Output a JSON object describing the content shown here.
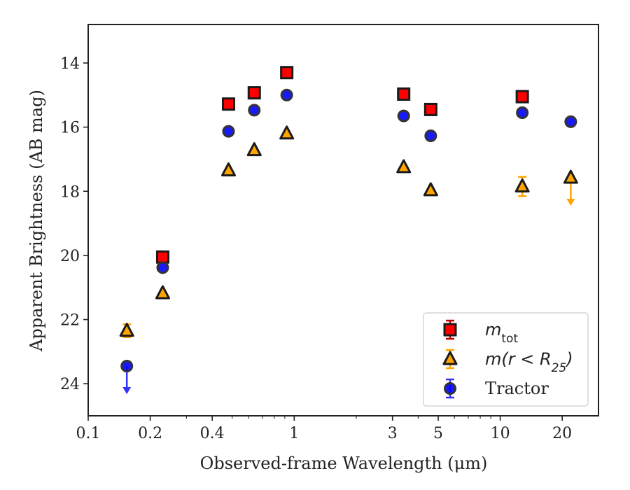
{
  "chart_data": {
    "type": "scatter",
    "xlabel": "Observed-frame Wavelength (μm)",
    "ylabel": "Apparent Brightness (AB mag)",
    "x_scale": "log",
    "xlim": [
      0.1,
      30
    ],
    "ylim": [
      25.0,
      12.8
    ],
    "y_inverted": true,
    "x_ticks": [
      {
        "value": 0.1,
        "label": "0.1"
      },
      {
        "value": 0.2,
        "label": "0.2"
      },
      {
        "value": 0.4,
        "label": "0.4"
      },
      {
        "value": 1,
        "label": "1"
      },
      {
        "value": 3,
        "label": "3"
      },
      {
        "value": 5,
        "label": "5"
      },
      {
        "value": 10,
        "label": "10"
      },
      {
        "value": 20,
        "label": "20"
      }
    ],
    "y_ticks": [
      {
        "value": 14,
        "label": "14"
      },
      {
        "value": 16,
        "label": "16"
      },
      {
        "value": 18,
        "label": "18"
      },
      {
        "value": 20,
        "label": "20"
      },
      {
        "value": 22,
        "label": "22"
      },
      {
        "value": 24,
        "label": "24"
      }
    ],
    "grid": false,
    "legend_position": "lower-right",
    "series": [
      {
        "name": "m_tot",
        "legend_main": "m",
        "legend_sub": "tot",
        "marker": "square",
        "color": "#ff0000",
        "edge_color": "#1a1a1a",
        "error_color": "#c00000",
        "points": [
          {
            "x": 0.23,
            "y": 20.05
          },
          {
            "x": 0.48,
            "y": 15.28
          },
          {
            "x": 0.64,
            "y": 14.93
          },
          {
            "x": 0.92,
            "y": 14.3
          },
          {
            "x": 3.4,
            "y": 14.97
          },
          {
            "x": 4.6,
            "y": 15.45
          },
          {
            "x": 12.8,
            "y": 15.05
          }
        ]
      },
      {
        "name": "m(r < R_25)",
        "legend_main": "m(r < R",
        "legend_sub": "25",
        "legend_end": ")",
        "marker": "triangle",
        "color": "#ffa500",
        "edge_color": "#1a1a1a",
        "error_color": "#ffa500",
        "points": [
          {
            "x": 0.154,
            "y": 22.35,
            "err": 0.2
          },
          {
            "x": 0.23,
            "y": 21.18
          },
          {
            "x": 0.48,
            "y": 17.35
          },
          {
            "x": 0.64,
            "y": 16.72
          },
          {
            "x": 0.92,
            "y": 16.2
          },
          {
            "x": 3.4,
            "y": 17.25
          },
          {
            "x": 4.6,
            "y": 17.97
          },
          {
            "x": 12.8,
            "y": 17.85,
            "err": 0.3
          },
          {
            "x": 22.0,
            "y": 17.58,
            "upper_limit": true
          }
        ]
      },
      {
        "name": "Tractor",
        "legend_main": "Tractor",
        "marker": "circle",
        "color": "#0000ff",
        "edge_color": "#333333",
        "error_color": "#3333ff",
        "points": [
          {
            "x": 0.154,
            "y": 23.45,
            "upper_limit": true
          },
          {
            "x": 0.23,
            "y": 20.38
          },
          {
            "x": 0.48,
            "y": 16.13
          },
          {
            "x": 0.64,
            "y": 15.47
          },
          {
            "x": 0.92,
            "y": 15.0
          },
          {
            "x": 3.4,
            "y": 15.65
          },
          {
            "x": 4.6,
            "y": 16.27
          },
          {
            "x": 12.8,
            "y": 15.55
          },
          {
            "x": 22.0,
            "y": 15.83
          }
        ]
      }
    ]
  }
}
